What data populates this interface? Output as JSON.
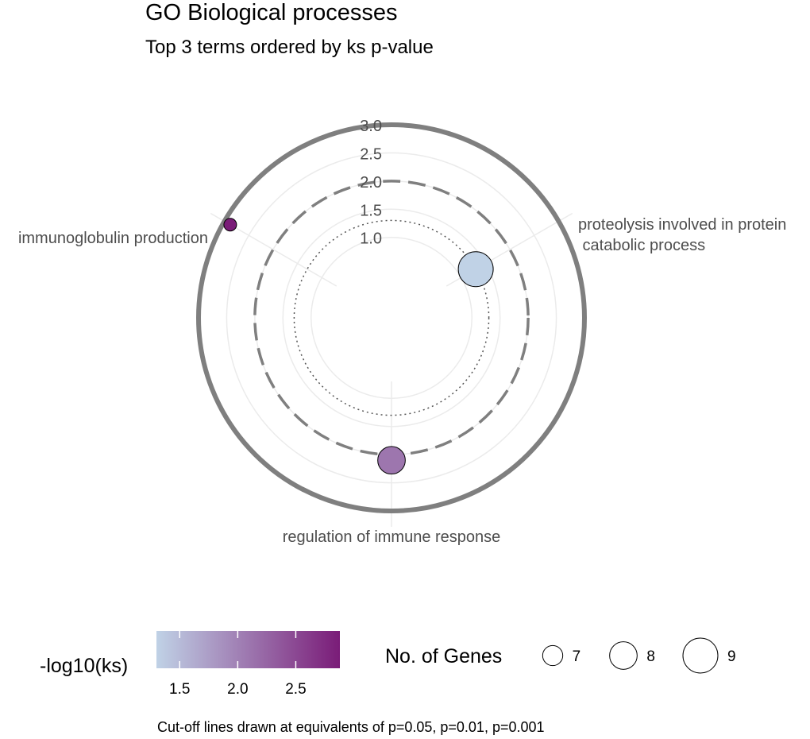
{
  "chart_data": {
    "type": "scatter",
    "coordinate_system": "polar",
    "title": "GO Biological processes",
    "subtitle": "Top 3 terms ordered by ks p-value",
    "caption": "Cut-off lines drawn at equivalents of p=0.05, p=0.01, p=0.001",
    "radial_axis": {
      "range": [
        0.7,
        3.0
      ],
      "ticks": [
        1.0,
        1.5,
        2.0,
        2.5,
        3.0
      ],
      "tick_labels": [
        "1.0",
        "1.5",
        "2.0",
        "2.5",
        "3.0"
      ]
    },
    "cutoff_lines": [
      {
        "p": 0.05,
        "value": 1.301,
        "style": "dotted"
      },
      {
        "p": 0.01,
        "value": 2.0,
        "style": "dashed"
      },
      {
        "p": 0.001,
        "value": 3.0,
        "style": "solid"
      }
    ],
    "grid": true,
    "categories": [
      "proteolysis involved in protein\n catabolic process",
      "regulation of immune response",
      "immunoglobulin production"
    ],
    "points": [
      {
        "category": "proteolysis involved in protein\n catabolic process",
        "value": 1.3,
        "genes": 9
      },
      {
        "category": "regulation of immune response",
        "value": 2.1,
        "genes": 8
      },
      {
        "category": "immunoglobulin production",
        "value": 2.88,
        "genes": 6
      }
    ],
    "color_legend": {
      "title": "-log10(ks)",
      "range": [
        1.3,
        2.88
      ],
      "ticks": [
        1.5,
        2.0,
        2.5
      ],
      "tick_labels": [
        "1.5",
        "2.0",
        "2.5"
      ],
      "low_color": "#c0d2e6",
      "high_color": "#7a1c78"
    },
    "size_legend": {
      "title": "No. of Genes",
      "values": [
        7,
        8,
        9
      ],
      "labels": [
        "7",
        "8",
        "9"
      ]
    }
  }
}
